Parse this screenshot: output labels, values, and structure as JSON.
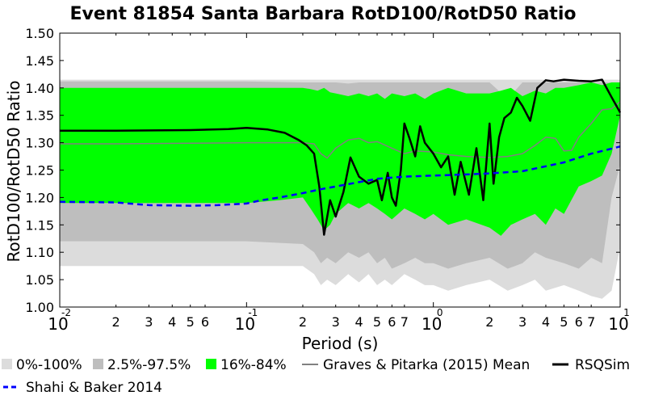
{
  "chart_data": {
    "type": "area",
    "title": "Event 81854 Santa Barbara RotD100/RotD50 Ratio",
    "xlabel": "Period (s)",
    "ylabel": "RotD100/RotD50 Ratio",
    "x_scale": "log",
    "xlim": [
      0.01,
      10
    ],
    "ylim": [
      1.0,
      1.5
    ],
    "grid": false,
    "y_ticks": [
      "1.00",
      "1.05",
      "1.10",
      "1.15",
      "1.20",
      "1.25",
      "1.30",
      "1.35",
      "1.40",
      "1.45",
      "1.50"
    ],
    "x_major_ticks": [
      {
        "value": 0.01,
        "base": "10",
        "exp": "-2"
      },
      {
        "value": 0.1,
        "base": "10",
        "exp": "-1"
      },
      {
        "value": 1,
        "base": "10",
        "exp": "0"
      },
      {
        "value": 10,
        "base": "10",
        "exp": "1"
      }
    ],
    "x_minor_ticks": [
      {
        "value": 0.02,
        "label": "2"
      },
      {
        "value": 0.03,
        "label": "3"
      },
      {
        "value": 0.04,
        "label": "4"
      },
      {
        "value": 0.05,
        "label": "5"
      },
      {
        "value": 0.06,
        "label": "6"
      },
      {
        "value": 0.2,
        "label": "2"
      },
      {
        "value": 0.3,
        "label": "3"
      },
      {
        "value": 0.4,
        "label": "4"
      },
      {
        "value": 0.5,
        "label": "5"
      },
      {
        "value": 0.6,
        "label": "6"
      },
      {
        "value": 0.7,
        "label": "7"
      },
      {
        "value": 2,
        "label": "2"
      },
      {
        "value": 3,
        "label": "3"
      },
      {
        "value": 4,
        "label": "4"
      },
      {
        "value": 5,
        "label": "5"
      },
      {
        "value": 6,
        "label": "6"
      },
      {
        "value": 7,
        "label": "7"
      }
    ],
    "bands": [
      {
        "name": "0%-100%",
        "color": "#dcdcdc",
        "x": [
          0.01,
          0.02,
          0.05,
          0.1,
          0.2,
          0.23,
          0.25,
          0.27,
          0.3,
          0.35,
          0.4,
          0.45,
          0.5,
          0.55,
          0.6,
          0.7,
          0.8,
          0.9,
          1.0,
          1.2,
          1.5,
          2.0,
          2.5,
          3.0,
          3.5,
          4.0,
          5.0,
          6.0,
          7.0,
          8.0,
          9.0,
          10.0
        ],
        "upper": [
          1.415,
          1.415,
          1.415,
          1.415,
          1.415,
          1.415,
          1.415,
          1.415,
          1.415,
          1.415,
          1.415,
          1.415,
          1.415,
          1.415,
          1.415,
          1.415,
          1.415,
          1.415,
          1.415,
          1.415,
          1.415,
          1.415,
          1.415,
          1.415,
          1.415,
          1.415,
          1.415,
          1.415,
          1.415,
          1.415,
          1.415,
          1.415
        ],
        "lower": [
          1.075,
          1.075,
          1.075,
          1.075,
          1.075,
          1.06,
          1.04,
          1.05,
          1.04,
          1.06,
          1.045,
          1.06,
          1.04,
          1.05,
          1.04,
          1.06,
          1.05,
          1.04,
          1.04,
          1.03,
          1.04,
          1.05,
          1.03,
          1.04,
          1.05,
          1.03,
          1.04,
          1.03,
          1.02,
          1.015,
          1.03,
          1.11
        ]
      },
      {
        "name": "2.5%-97.5%",
        "color": "#bebebe",
        "x": [
          0.01,
          0.02,
          0.05,
          0.1,
          0.2,
          0.23,
          0.25,
          0.27,
          0.3,
          0.35,
          0.4,
          0.45,
          0.5,
          0.55,
          0.6,
          0.7,
          0.8,
          0.9,
          1.0,
          1.2,
          1.5,
          2.0,
          2.5,
          3.0,
          3.5,
          4.0,
          5.0,
          6.0,
          7.0,
          8.0,
          9.0,
          10.0
        ],
        "upper": [
          1.412,
          1.412,
          1.412,
          1.412,
          1.41,
          1.41,
          1.41,
          1.41,
          1.41,
          1.408,
          1.41,
          1.41,
          1.41,
          1.41,
          1.41,
          1.41,
          1.41,
          1.41,
          1.41,
          1.41,
          1.41,
          1.41,
          1.38,
          1.41,
          1.41,
          1.41,
          1.41,
          1.41,
          1.41,
          1.41,
          1.41,
          1.41
        ],
        "lower": [
          1.12,
          1.12,
          1.12,
          1.12,
          1.115,
          1.1,
          1.08,
          1.09,
          1.08,
          1.1,
          1.09,
          1.1,
          1.08,
          1.09,
          1.07,
          1.08,
          1.09,
          1.08,
          1.08,
          1.07,
          1.08,
          1.09,
          1.07,
          1.08,
          1.1,
          1.09,
          1.08,
          1.07,
          1.09,
          1.08,
          1.2,
          1.26
        ]
      },
      {
        "name": "16%-84%",
        "color": "#00ff00",
        "x": [
          0.01,
          0.02,
          0.05,
          0.1,
          0.15,
          0.2,
          0.22,
          0.24,
          0.26,
          0.28,
          0.3,
          0.35,
          0.4,
          0.45,
          0.5,
          0.55,
          0.6,
          0.7,
          0.8,
          0.9,
          1.0,
          1.2,
          1.5,
          2.0,
          2.3,
          2.6,
          3.0,
          3.5,
          4.0,
          4.5,
          5.0,
          6.0,
          7.0,
          8.0,
          9.0,
          10.0
        ],
        "upper": [
          1.4,
          1.4,
          1.4,
          1.4,
          1.4,
          1.4,
          1.398,
          1.395,
          1.4,
          1.392,
          1.39,
          1.385,
          1.39,
          1.385,
          1.39,
          1.38,
          1.39,
          1.385,
          1.39,
          1.38,
          1.39,
          1.4,
          1.39,
          1.39,
          1.395,
          1.4,
          1.385,
          1.395,
          1.39,
          1.4,
          1.4,
          1.405,
          1.41,
          1.405,
          1.41,
          1.41
        ],
        "lower": [
          1.19,
          1.19,
          1.19,
          1.19,
          1.195,
          1.2,
          1.18,
          1.16,
          1.14,
          1.15,
          1.17,
          1.19,
          1.18,
          1.19,
          1.18,
          1.17,
          1.16,
          1.18,
          1.17,
          1.16,
          1.17,
          1.15,
          1.16,
          1.145,
          1.13,
          1.15,
          1.16,
          1.17,
          1.15,
          1.18,
          1.17,
          1.22,
          1.23,
          1.24,
          1.28,
          1.35
        ]
      }
    ],
    "series": [
      {
        "name": "Graves & Pitarka (2015) Mean",
        "color": "#808080",
        "style": "solid",
        "x": [
          0.01,
          0.02,
          0.05,
          0.1,
          0.2,
          0.23,
          0.25,
          0.27,
          0.3,
          0.35,
          0.4,
          0.45,
          0.5,
          0.6,
          0.7,
          0.8,
          1.0,
          1.2,
          1.5,
          2.0,
          2.5,
          3.0,
          3.5,
          4.0,
          4.5,
          5.0,
          5.5,
          6.0,
          7.0,
          8.0,
          9.0,
          10.0
        ],
        "values": [
          1.298,
          1.298,
          1.299,
          1.3,
          1.3,
          1.298,
          1.28,
          1.272,
          1.29,
          1.305,
          1.308,
          1.3,
          1.302,
          1.29,
          1.28,
          1.285,
          1.283,
          1.278,
          1.275,
          1.273,
          1.275,
          1.28,
          1.295,
          1.31,
          1.308,
          1.285,
          1.286,
          1.31,
          1.335,
          1.36,
          1.362,
          1.375
        ]
      },
      {
        "name": "RSQSim",
        "color": "#000000",
        "style": "solid",
        "x": [
          0.01,
          0.02,
          0.05,
          0.08,
          0.1,
          0.13,
          0.16,
          0.19,
          0.21,
          0.23,
          0.245,
          0.26,
          0.28,
          0.3,
          0.33,
          0.36,
          0.4,
          0.45,
          0.5,
          0.53,
          0.57,
          0.6,
          0.63,
          0.67,
          0.7,
          0.75,
          0.8,
          0.85,
          0.9,
          1.0,
          1.1,
          1.2,
          1.3,
          1.4,
          1.55,
          1.7,
          1.85,
          2.0,
          2.1,
          2.25,
          2.4,
          2.6,
          2.8,
          3.0,
          3.3,
          3.6,
          4.0,
          4.4,
          5.0,
          6.0,
          7.0,
          8.0,
          9.0,
          10.0
        ],
        "values": [
          1.322,
          1.322,
          1.323,
          1.325,
          1.327,
          1.324,
          1.318,
          1.305,
          1.295,
          1.28,
          1.22,
          1.132,
          1.195,
          1.165,
          1.21,
          1.273,
          1.238,
          1.225,
          1.232,
          1.195,
          1.245,
          1.2,
          1.185,
          1.25,
          1.335,
          1.305,
          1.275,
          1.33,
          1.3,
          1.28,
          1.255,
          1.275,
          1.205,
          1.265,
          1.205,
          1.29,
          1.195,
          1.335,
          1.225,
          1.31,
          1.345,
          1.355,
          1.382,
          1.367,
          1.34,
          1.4,
          1.414,
          1.412,
          1.415,
          1.413,
          1.412,
          1.415,
          1.383,
          1.355
        ]
      },
      {
        "name": "Shahi & Baker 2014",
        "color": "#0000ff",
        "style": "dashed",
        "x": [
          0.01,
          0.02,
          0.03,
          0.05,
          0.07,
          0.1,
          0.12,
          0.15,
          0.2,
          0.25,
          0.3,
          0.4,
          0.5,
          0.7,
          1.0,
          1.5,
          2.0,
          3.0,
          4.0,
          5.0,
          7.0,
          10.0
        ],
        "values": [
          1.192,
          1.191,
          1.186,
          1.185,
          1.186,
          1.189,
          1.195,
          1.2,
          1.208,
          1.215,
          1.22,
          1.228,
          1.234,
          1.238,
          1.24,
          1.242,
          1.244,
          1.248,
          1.257,
          1.264,
          1.28,
          1.293
        ]
      }
    ],
    "legend": {
      "placement": "bottom",
      "entries": [
        {
          "label": "0%-100%",
          "kind": "patch",
          "color": "#dcdcdc"
        },
        {
          "label": "2.5%-97.5%",
          "kind": "patch",
          "color": "#bebebe"
        },
        {
          "label": "16%-84%",
          "kind": "patch",
          "color": "#00ff00"
        },
        {
          "label": "Graves & Pitarka (2015) Mean",
          "kind": "line",
          "color": "#808080",
          "dash": false
        },
        {
          "label": "RSQSim",
          "kind": "line",
          "color": "#000000",
          "dash": false
        },
        {
          "label": "Shahi & Baker 2014",
          "kind": "line",
          "color": "#0000ff",
          "dash": true
        }
      ]
    }
  }
}
